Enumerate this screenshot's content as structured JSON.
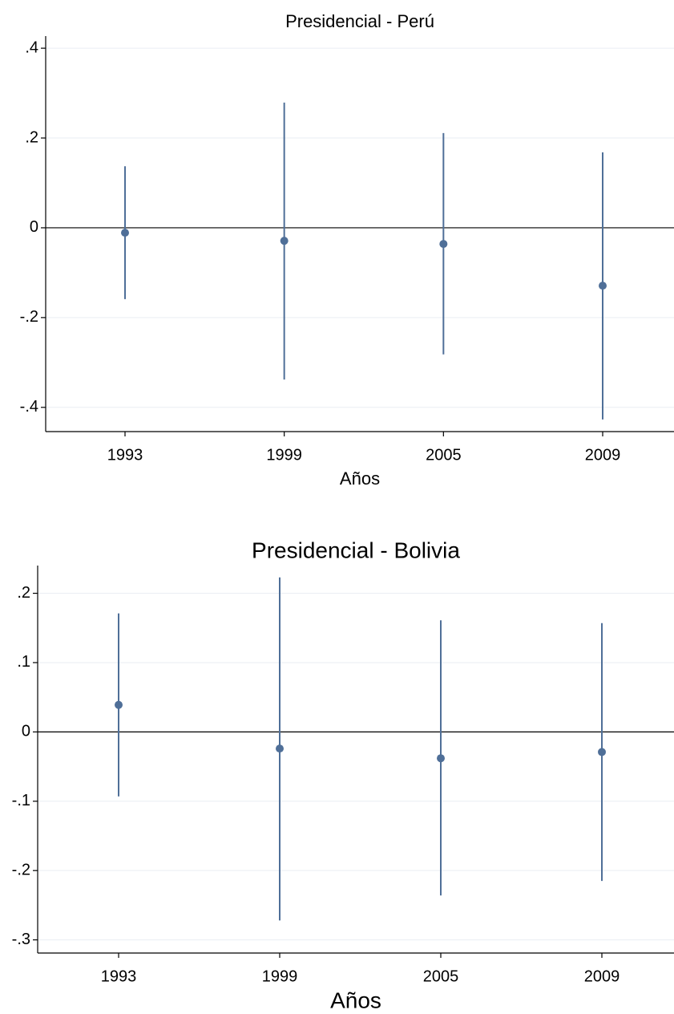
{
  "chart_data": [
    {
      "type": "errorbar",
      "title": "Presidencial - Perú",
      "x_label": "Años",
      "categories": [
        "1993",
        "1999",
        "2005",
        "2009"
      ],
      "values": [
        -0.011,
        -0.029,
        -0.036,
        -0.129
      ],
      "ci_low": [
        -0.159,
        -0.338,
        -0.282,
        -0.427
      ],
      "ci_high": [
        0.137,
        0.279,
        0.211,
        0.168
      ],
      "color": "#4f6f98",
      "ylim": [
        -0.454,
        0.427
      ],
      "yticks": [
        {
          "value": -0.4,
          "label": "-.4"
        },
        {
          "value": -0.2,
          "label": "-.2"
        },
        0,
        {
          "value": 0.2,
          "label": ".2"
        },
        {
          "value": 0.4,
          "label": ".4"
        }
      ],
      "grid": true,
      "zero_line": true
    },
    {
      "type": "errorbar",
      "title": "Presidencial - Bolivia",
      "x_label": "Años",
      "categories": [
        "1993",
        "1999",
        "2005",
        "2009"
      ],
      "values": [
        0.039,
        -0.024,
        -0.038,
        -0.029
      ],
      "ci_low": [
        -0.093,
        -0.272,
        -0.236,
        -0.215
      ],
      "ci_high": [
        0.171,
        0.223,
        0.161,
        0.157
      ],
      "color": "#4f6f98",
      "ylim": [
        -0.319,
        0.24
      ],
      "yticks": [
        {
          "value": -0.3,
          "label": "-.3"
        },
        {
          "value": -0.2,
          "label": "-.2"
        },
        {
          "value": -0.1,
          "label": "-.1"
        },
        0,
        {
          "value": 0.1,
          "label": ".1"
        },
        {
          "value": 0.2,
          "label": ".2"
        }
      ],
      "grid": true,
      "zero_line": true
    }
  ]
}
